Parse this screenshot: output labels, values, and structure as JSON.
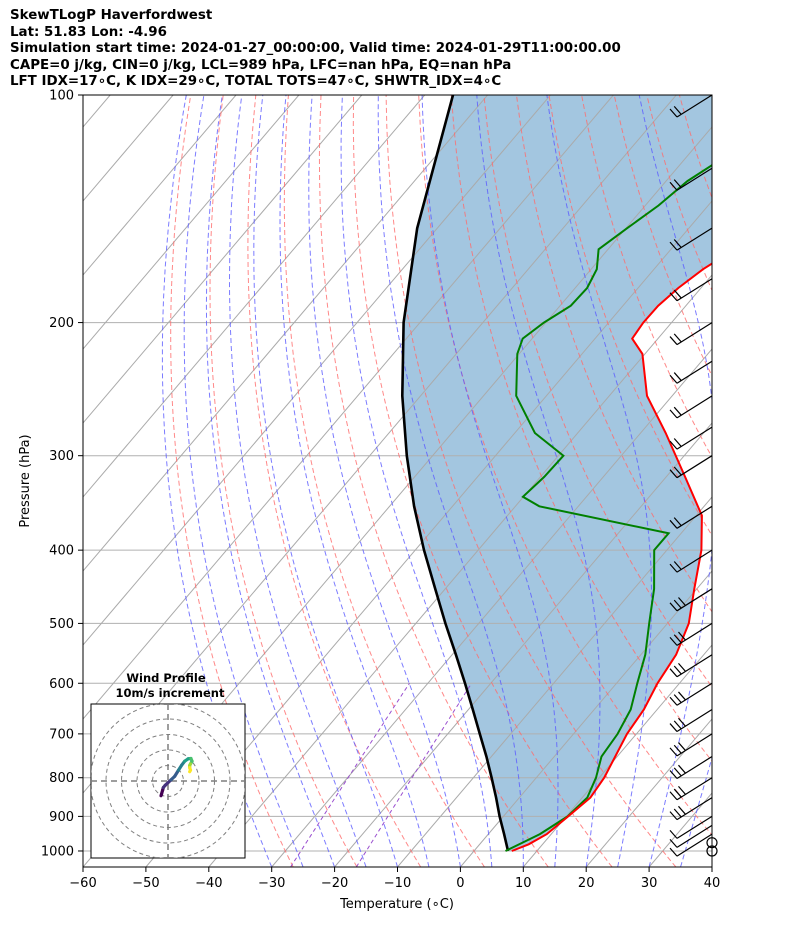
{
  "header": {
    "line1": "SkewTLogP Haverfordwest",
    "line2": "Lat: 51.83   Lon: -4.96",
    "line3": "Simulation start time: 2024-01-27_00:00:00, Valid time: 2024-01-29T11:00:00.00",
    "line4": "CAPE=0 j/kg, CIN=0 j/kg, LCL=989 hPa, LFC=nan hPa, EQ=nan hPa",
    "line5": "LFT IDX=17∘C, K IDX=29∘C, TOTAL TOTS=47∘C, SHWTR_IDX=4∘C"
  },
  "chart_data": {
    "type": "line",
    "chart_kind": "skew-T log-P",
    "xlabel": "Temperature (∘C)",
    "ylabel": "Pressure (hPa)",
    "xlim": [
      -60,
      40
    ],
    "ylim_hpa": [
      1050,
      100
    ],
    "y_scale": "log",
    "x_ticks": [
      -60,
      -50,
      -40,
      -30,
      -20,
      -10,
      0,
      10,
      20,
      30,
      40
    ],
    "x_tick_labels": [
      "−60",
      "−50",
      "−40",
      "−30",
      "−20",
      "−10",
      "0",
      "10",
      "20",
      "30",
      "40"
    ],
    "y_ticks": [
      100,
      200,
      300,
      400,
      500,
      600,
      700,
      800,
      900,
      1000
    ],
    "y_tick_labels": [
      "100",
      "200",
      "300",
      "400",
      "500",
      "600",
      "700",
      "800",
      "900",
      "1000"
    ],
    "grid": true,
    "colors": {
      "temperature": "#ff0000",
      "dewpoint": "#008000",
      "parcel": "#000000",
      "shading": "#a3c6e0",
      "dry_adiabat": "#ff6b6b",
      "moist_adiabat": "#5b5bff",
      "mixing_ratio": "#9a4fcf",
      "isotherm": "#aaaaaa"
    },
    "series": [
      {
        "key": "temperature",
        "points": [
          [
            1000,
            6.0
          ],
          [
            980,
            7.8
          ],
          [
            950,
            9.3
          ],
          [
            900,
            10.3
          ],
          [
            850,
            11.3
          ],
          [
            800,
            10.8
          ],
          [
            700,
            8.5
          ],
          [
            650,
            7.9
          ],
          [
            600,
            6.5
          ],
          [
            550,
            5.6
          ],
          [
            500,
            3.4
          ],
          [
            450,
            -0.4
          ],
          [
            400,
            -4.5
          ],
          [
            360,
            -9.1
          ],
          [
            320,
            -17.0
          ],
          [
            280,
            -26.0
          ],
          [
            250,
            -34.0
          ],
          [
            220,
            -40.4
          ],
          [
            210,
            -44.1
          ],
          [
            200,
            -44.5
          ],
          [
            190,
            -44.4
          ],
          [
            180,
            -43.6
          ],
          [
            170,
            -42.2
          ],
          [
            160,
            -39.9
          ],
          [
            150,
            -37.1
          ],
          [
            140,
            -34.2
          ],
          [
            130,
            -31.4
          ],
          [
            120,
            -28.6
          ],
          [
            110,
            -26.7
          ],
          [
            100,
            -25.3
          ]
        ]
      },
      {
        "key": "dewpoint",
        "points": [
          [
            1000,
            5.0
          ],
          [
            970,
            6.9
          ],
          [
            950,
            8.2
          ],
          [
            900,
            10.2
          ],
          [
            850,
            10.8
          ],
          [
            800,
            9.5
          ],
          [
            750,
            7.5
          ],
          [
            700,
            7.0
          ],
          [
            650,
            5.8
          ],
          [
            600,
            3.3
          ],
          [
            550,
            0.7
          ],
          [
            500,
            -2.9
          ],
          [
            450,
            -6.8
          ],
          [
            400,
            -12.0
          ],
          [
            380,
            -12.0
          ],
          [
            350,
            -36.2
          ],
          [
            340,
            -40.1
          ],
          [
            320,
            -39.4
          ],
          [
            300,
            -39.2
          ],
          [
            280,
            -46.8
          ],
          [
            250,
            -54.8
          ],
          [
            220,
            -60.3
          ],
          [
            210,
            -61.5
          ],
          [
            200,
            -60.3
          ],
          [
            190,
            -58.3
          ],
          [
            180,
            -58.1
          ],
          [
            170,
            -59.1
          ],
          [
            160,
            -61.5
          ],
          [
            150,
            -59.8
          ],
          [
            140,
            -57.9
          ],
          [
            130,
            -56.6
          ],
          [
            120,
            -53.7
          ],
          [
            110,
            -50.2
          ],
          [
            100,
            -46.9
          ]
        ]
      },
      {
        "key": "parcel",
        "points": [
          [
            1000,
            5.4
          ],
          [
            950,
            2.5
          ],
          [
            900,
            -0.6
          ],
          [
            850,
            -3.7
          ],
          [
            800,
            -7.1
          ],
          [
            750,
            -10.8
          ],
          [
            700,
            -14.9
          ],
          [
            650,
            -19.3
          ],
          [
            600,
            -24.1
          ],
          [
            550,
            -29.4
          ],
          [
            500,
            -35.3
          ],
          [
            450,
            -41.6
          ],
          [
            400,
            -48.6
          ],
          [
            350,
            -56.1
          ],
          [
            300,
            -64.1
          ],
          [
            250,
            -72.9
          ],
          [
            200,
            -82.6
          ],
          [
            150,
            -93.2
          ],
          [
            100,
            -105.5
          ]
        ]
      }
    ],
    "wind_barbs_hpa": [
      1000,
      975,
      950,
      925,
      900,
      850,
      800,
      750,
      700,
      650,
      600,
      550,
      500,
      450,
      400,
      350,
      300,
      275,
      250,
      225,
      200,
      175,
      150,
      125,
      100
    ],
    "hodograph": {
      "title": "Wind Profile",
      "subtitle": "10m/s increment",
      "points": [
        [
          -4.5,
          -9.5
        ],
        [
          -4.2,
          -8.5
        ],
        [
          -3.5,
          -6.0
        ],
        [
          -3.0,
          -4.2
        ],
        [
          -1.8,
          -2.8
        ],
        [
          2.0,
          0.8
        ],
        [
          4.3,
          3.0
        ],
        [
          6.8,
          7.0
        ],
        [
          8.8,
          10.2
        ],
        [
          10.8,
          12.8
        ],
        [
          13.0,
          14.3
        ],
        [
          14.8,
          14.5
        ],
        [
          15.5,
          12.8
        ],
        [
          14.5,
          11.0
        ],
        [
          14.0,
          10.0
        ],
        [
          14.0,
          8.6
        ],
        [
          14.5,
          7.0
        ],
        [
          14.0,
          6.0
        ]
      ]
    }
  }
}
